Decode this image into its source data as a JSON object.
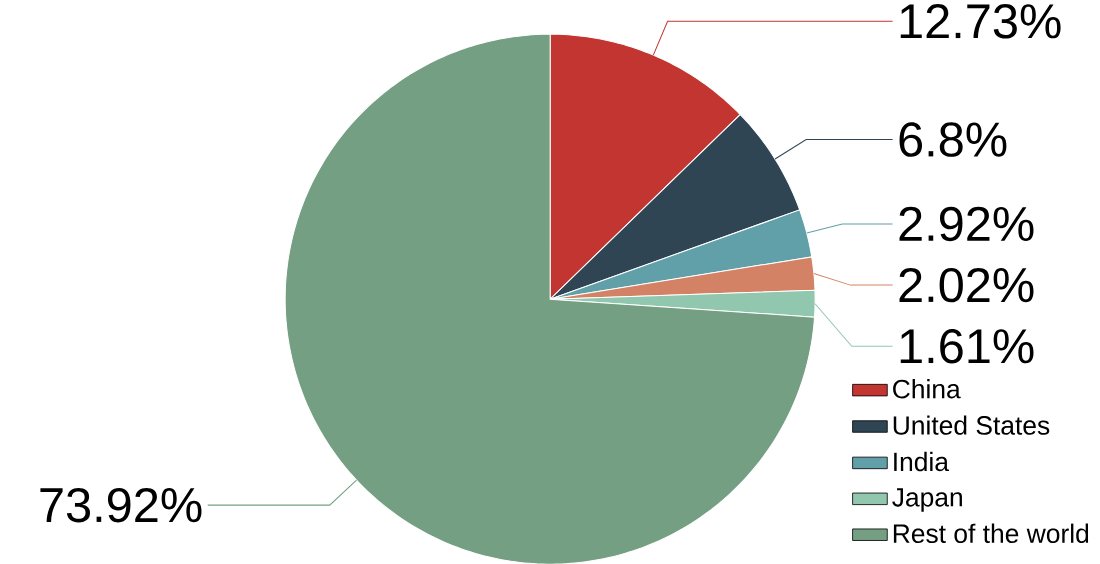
{
  "chart_data": {
    "type": "pie",
    "categories": [
      "China",
      "United States",
      "India",
      null,
      "Japan",
      "Rest of the world"
    ],
    "values": [
      12.73,
      6.8,
      2.92,
      2.02,
      1.61,
      73.92
    ],
    "colors": [
      "#c23531",
      "#2f4554",
      "#61a0a8",
      "#d48265",
      "#91c7ae",
      "#749f83"
    ],
    "value_labels": [
      "12.73%",
      "6.8%",
      "2.92%",
      "2.02%",
      "1.61%",
      "73.92%"
    ],
    "legend": "bottom right"
  }
}
